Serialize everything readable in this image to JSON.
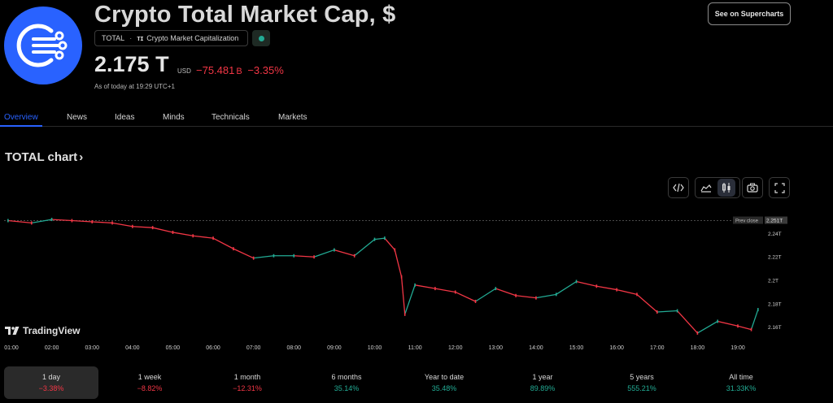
{
  "header": {
    "title": "Crypto Total Market Cap, $",
    "symbol": "TOTAL",
    "symbol_desc": "Crypto Market Capitalization",
    "see_btn": "See on Supercharts"
  },
  "price": {
    "value": "2.175 T",
    "currency": "USD",
    "change_abs": "−75.481",
    "change_unit": "B",
    "change_pct": "−3.35%",
    "as_of": "As of today at 19:29 UTC+1"
  },
  "tabs": [
    "Overview",
    "News",
    "Ideas",
    "Minds",
    "Technicals",
    "Markets"
  ],
  "chart_title": "TOTAL chart",
  "tradingview_label": "TradingView",
  "colors": {
    "accent": "#2962ff",
    "up": "#22ab94",
    "down": "#f23645"
  },
  "icons": [
    "embed-icon",
    "area-chart-icon",
    "candles-icon",
    "camera-icon",
    "fullscreen-icon"
  ],
  "chart_data": {
    "type": "line",
    "x_ticks": [
      "01:00",
      "02:00",
      "03:00",
      "04:00",
      "05:00",
      "06:00",
      "07:00",
      "08:00",
      "09:00",
      "10:00",
      "11:00",
      "12:00",
      "13:00",
      "14:00",
      "15:00",
      "16:00",
      "17:00",
      "18:00",
      "19:00"
    ],
    "y_ticks": [
      "2.24T",
      "2.22T",
      "2.2T",
      "2.18T",
      "2.16T"
    ],
    "y_tick_values": [
      2.24,
      2.22,
      2.2,
      2.18,
      2.16
    ],
    "prev_close_label": "Prev close",
    "prev_close_value": "2.251T",
    "prev_close": 2.251,
    "ylim": [
      2.148,
      2.259
    ],
    "series": [
      {
        "x": [
          "00:55",
          "01:30",
          "02:00",
          "02:30",
          "03:00",
          "03:30",
          "04:00",
          "04:30",
          "05:00",
          "05:30",
          "06:00",
          "06:30",
          "07:00",
          "07:30",
          "08:00",
          "08:30",
          "09:00",
          "09:30",
          "10:00",
          "10:15",
          "10:30",
          "10:40",
          "10:45",
          "11:00",
          "11:30",
          "12:00",
          "12:30",
          "13:00",
          "13:30",
          "14:00",
          "14:30",
          "15:00",
          "15:30",
          "16:00",
          "16:30",
          "17:00",
          "17:30",
          "18:00",
          "18:30",
          "19:00",
          "19:20",
          "19:30"
        ],
        "values": [
          2.251,
          2.249,
          2.252,
          2.251,
          2.25,
          2.249,
          2.246,
          2.245,
          2.241,
          2.238,
          2.236,
          2.227,
          2.219,
          2.221,
          2.221,
          2.22,
          2.226,
          2.221,
          2.235,
          2.236,
          2.226,
          2.203,
          2.171,
          2.196,
          2.193,
          2.19,
          2.182,
          2.193,
          2.187,
          2.185,
          2.188,
          2.199,
          2.195,
          2.192,
          2.188,
          2.173,
          2.174,
          2.155,
          2.165,
          2.161,
          2.158,
          2.175
        ]
      }
    ]
  },
  "periods": [
    {
      "label": "1 day",
      "value": "−3.38%",
      "dir": "neg"
    },
    {
      "label": "1 week",
      "value": "−8.82%",
      "dir": "neg"
    },
    {
      "label": "1 month",
      "value": "−12.31%",
      "dir": "neg"
    },
    {
      "label": "6 months",
      "value": "35.14%",
      "dir": "pos"
    },
    {
      "label": "Year to date",
      "value": "35.48%",
      "dir": "pos"
    },
    {
      "label": "1 year",
      "value": "89.89%",
      "dir": "pos"
    },
    {
      "label": "5 years",
      "value": "555.21%",
      "dir": "pos"
    },
    {
      "label": "All time",
      "value": "31.33K%",
      "dir": "pos"
    }
  ]
}
